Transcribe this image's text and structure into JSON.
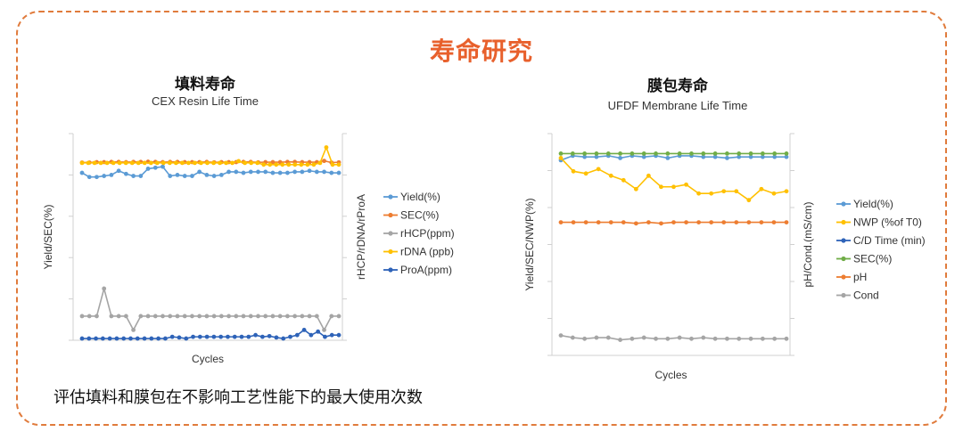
{
  "page": {
    "title": "寿命研究",
    "footer": "评估填料和膜包在不影响工艺性能下的最大使用次数",
    "accent_color": "#e8602c",
    "frame_color": "#e07b3c"
  },
  "chart_data": [
    {
      "type": "line",
      "title": "填料寿命",
      "subtitle": "CEX Resin Life Time",
      "xlabel": "Cycles",
      "ylabel": "Yield/SEC(%)",
      "y2label": "rHCP/rDNA/rProA",
      "grid": false,
      "legend_position": "right",
      "ylim": [
        0,
        100
      ],
      "series": [
        {
          "name": "Yield(%)",
          "color": "#5b9bd5",
          "axis": "left",
          "values": [
            81,
            79,
            79,
            79.5,
            80,
            82,
            80.5,
            79.5,
            79.5,
            83,
            83.5,
            84,
            79.5,
            80,
            79.5,
            79.5,
            81.5,
            80,
            79.5,
            80,
            81.5,
            81.5,
            81,
            81.5,
            81.5,
            81.5,
            81,
            81,
            81,
            81.5,
            81.5,
            82,
            81.5,
            81.5,
            81,
            81
          ]
        },
        {
          "name": "SEC(%)",
          "color": "#ed7d31",
          "axis": "left",
          "values": [
            86,
            86,
            86.2,
            86.2,
            86.3,
            86.3,
            86.2,
            86.3,
            86.3,
            86.4,
            86.3,
            86.2,
            86.3,
            86.3,
            86.2,
            86.2,
            86.2,
            86.3,
            86.1,
            86.2,
            86.2,
            86.2,
            86.3,
            86.3,
            86.1,
            86.2,
            86.2,
            86.2,
            86.3,
            86.3,
            86.2,
            86.2,
            86.2,
            86.8,
            86,
            86.1
          ]
        },
        {
          "name": "rHCP(ppm)",
          "color": "#a5a5a5",
          "axis": "right",
          "values": [
            7,
            7,
            7,
            15,
            7,
            7,
            7,
            3,
            7,
            7,
            7,
            7,
            7,
            7,
            7,
            7,
            7,
            7,
            7,
            7,
            7,
            7,
            7,
            7,
            7,
            7,
            7,
            7,
            7,
            7,
            7,
            7,
            7,
            3,
            7,
            7
          ]
        },
        {
          "name": "rDNA (ppb)",
          "color": "#ffc000",
          "axis": "right",
          "values": [
            51.5,
            51.5,
            51.5,
            51.5,
            51.5,
            51.5,
            51.5,
            51.5,
            51.5,
            51.5,
            51.5,
            51.5,
            51.5,
            51.5,
            51.5,
            51.5,
            51.5,
            51.5,
            51.5,
            51.5,
            51.5,
            51.5,
            51.5,
            51.5,
            51.5,
            52,
            51.5,
            51.5,
            51.5,
            51,
            51,
            51,
            51,
            51,
            51,
            51,
            51,
            51,
            51.5,
            56,
            51,
            51
          ]
        },
        {
          "name": "ProA(ppm)",
          "color": "#2e63b8",
          "axis": "right",
          "values": [
            0.5,
            0.5,
            0.5,
            0.5,
            0.5,
            0.5,
            0.5,
            0.5,
            0.5,
            0.5,
            0.5,
            0.5,
            0.5,
            1,
            0.8,
            0.5,
            1,
            1,
            1,
            1,
            1,
            1,
            1,
            1,
            1,
            1.5,
            1,
            1.2,
            0.8,
            0.5,
            1,
            1.5,
            3,
            1.5,
            2.5,
            1,
            1.5,
            1.5
          ]
        }
      ]
    },
    {
      "type": "line",
      "title": "膜包寿命",
      "subtitle": "UFDF Membrane Life Time",
      "xlabel": "Cycles",
      "ylabel": "Yield/SEC/NWP(%)",
      "y2label": "pH/Cond.(mS/cm)",
      "grid": false,
      "legend_position": "right",
      "ylim": [
        0,
        100
      ],
      "series": [
        {
          "name": "Yield(%)",
          "color": "#5b9bd5",
          "axis": "left",
          "values": [
            88,
            90,
            89.5,
            89.5,
            90,
            89,
            90,
            89.5,
            90,
            89,
            90,
            90,
            89.5,
            89.5,
            89,
            89.5,
            89.5,
            89.5,
            89.5,
            89.5
          ]
        },
        {
          "name": "NWP (%of T0)",
          "color": "#ffc000",
          "axis": "left",
          "values": [
            89,
            83,
            82,
            84,
            81,
            79,
            75,
            81,
            76,
            76,
            77,
            73,
            73,
            74,
            74,
            70,
            75,
            73,
            74
          ]
        },
        {
          "name": "C/D Time (min)",
          "color": "#2e63b8",
          "axis": "left",
          "values": []
        },
        {
          "name": "SEC(%)",
          "color": "#70ad47",
          "axis": "left",
          "values": [
            91,
            91,
            91,
            91,
            91,
            91,
            91,
            91,
            91,
            91,
            91,
            91,
            91,
            91,
            91,
            91,
            91,
            91,
            91,
            91
          ]
        },
        {
          "name": "pH",
          "color": "#ed7d31",
          "axis": "left",
          "values": [
            60,
            60,
            60,
            60,
            60,
            60,
            59.5,
            60,
            59.5,
            60,
            60,
            60,
            60,
            60,
            60,
            60,
            60,
            60,
            60
          ]
        },
        {
          "name": "Cond",
          "color": "#a5a5a5",
          "axis": "left",
          "values": [
            9,
            8,
            7.5,
            8,
            8,
            7,
            7.5,
            8,
            7.5,
            7.5,
            8,
            7.5,
            8,
            7.5,
            7.5,
            7.5,
            7.5,
            7.5,
            7.5,
            7.5
          ]
        }
      ]
    }
  ]
}
